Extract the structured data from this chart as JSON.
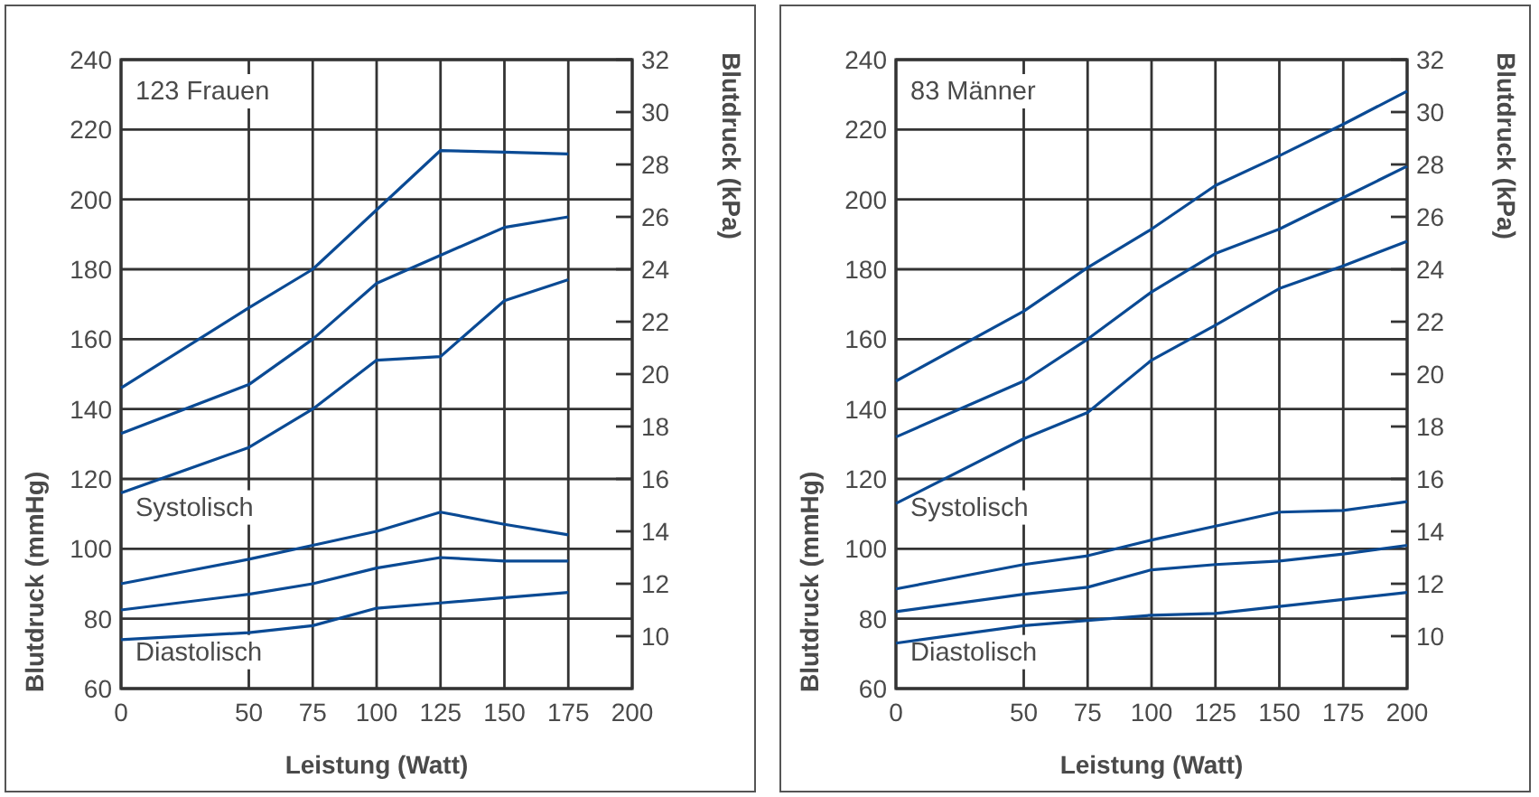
{
  "chart_data": [
    {
      "type": "line",
      "xlabel": "Leistung (Watt)",
      "ylabel": "Blutdruck (mmHg)",
      "y2label": "Blutdruck (kPa)",
      "annotations": [
        "123 Frauen",
        "Systolisch",
        "Diastolisch"
      ],
      "x": [
        0,
        50,
        75,
        100,
        125,
        150,
        175
      ],
      "xlim": [
        0,
        200
      ],
      "xticks": [
        0,
        50,
        75,
        100,
        125,
        150,
        175,
        200
      ],
      "ylim": [
        60,
        240
      ],
      "yticks": [
        60,
        80,
        100,
        120,
        140,
        160,
        180,
        200,
        220,
        240
      ],
      "y2lim": [
        8,
        32
      ],
      "y2ticks": [
        10,
        12,
        14,
        16,
        18,
        20,
        22,
        24,
        26,
        28,
        30,
        32
      ],
      "grid": true,
      "marker": "none",
      "series": [
        {
          "color": "#0a4a94",
          "values": [
            146,
            169,
            180,
            197,
            214,
            213.5,
            213
          ]
        },
        {
          "color": "#0a4a94",
          "values": [
            133,
            147,
            160,
            176,
            184,
            192,
            195
          ]
        },
        {
          "color": "#0a4a94",
          "values": [
            116,
            129,
            140,
            154,
            155,
            171,
            177
          ]
        },
        {
          "color": "#0a4a94",
          "values": [
            90,
            97,
            101,
            105,
            110.5,
            107,
            104
          ]
        },
        {
          "color": "#0a4a94",
          "values": [
            82.5,
            87,
            90,
            94.5,
            97.5,
            96.5,
            96.5
          ]
        },
        {
          "color": "#0a4a94",
          "values": [
            74,
            76,
            78,
            83,
            84.5,
            86,
            87.5
          ]
        }
      ]
    },
    {
      "type": "line",
      "xlabel": "Leistung (Watt)",
      "ylabel": "Blutdruck (mmHg)",
      "y2label": "Blutdruck (kPa)",
      "annotations": [
        "83 Männer",
        "Systolisch",
        "Diastolisch"
      ],
      "x": [
        0,
        50,
        75,
        100,
        125,
        150,
        175,
        200
      ],
      "xlim": [
        0,
        200
      ],
      "xticks": [
        0,
        50,
        75,
        100,
        125,
        150,
        175,
        200
      ],
      "ylim": [
        60,
        240
      ],
      "yticks": [
        60,
        80,
        100,
        120,
        140,
        160,
        180,
        200,
        220,
        240
      ],
      "y2lim": [
        8,
        32
      ],
      "y2ticks": [
        10,
        12,
        14,
        16,
        18,
        20,
        22,
        24,
        26,
        28,
        30,
        32
      ],
      "grid": true,
      "marker": "none",
      "series": [
        {
          "color": "#0a4a94",
          "values": [
            148,
            168,
            180.5,
            191.5,
            204,
            212.5,
            221.5,
            231
          ]
        },
        {
          "color": "#0a4a94",
          "values": [
            132,
            148,
            160,
            173.5,
            184.5,
            191.5,
            200.5,
            209.5
          ]
        },
        {
          "color": "#0a4a94",
          "values": [
            113,
            131.5,
            139,
            154,
            164,
            174.5,
            181,
            188
          ]
        },
        {
          "color": "#0a4a94",
          "values": [
            88.5,
            95.5,
            98,
            102.5,
            106.5,
            110.5,
            111,
            113.5
          ]
        },
        {
          "color": "#0a4a94",
          "values": [
            82,
            87,
            89,
            94,
            95.5,
            96.5,
            98.5,
            101
          ]
        },
        {
          "color": "#0a4a94",
          "values": [
            73,
            78,
            79.5,
            81,
            81.5,
            83.5,
            85.5,
            87.5
          ]
        }
      ]
    }
  ]
}
